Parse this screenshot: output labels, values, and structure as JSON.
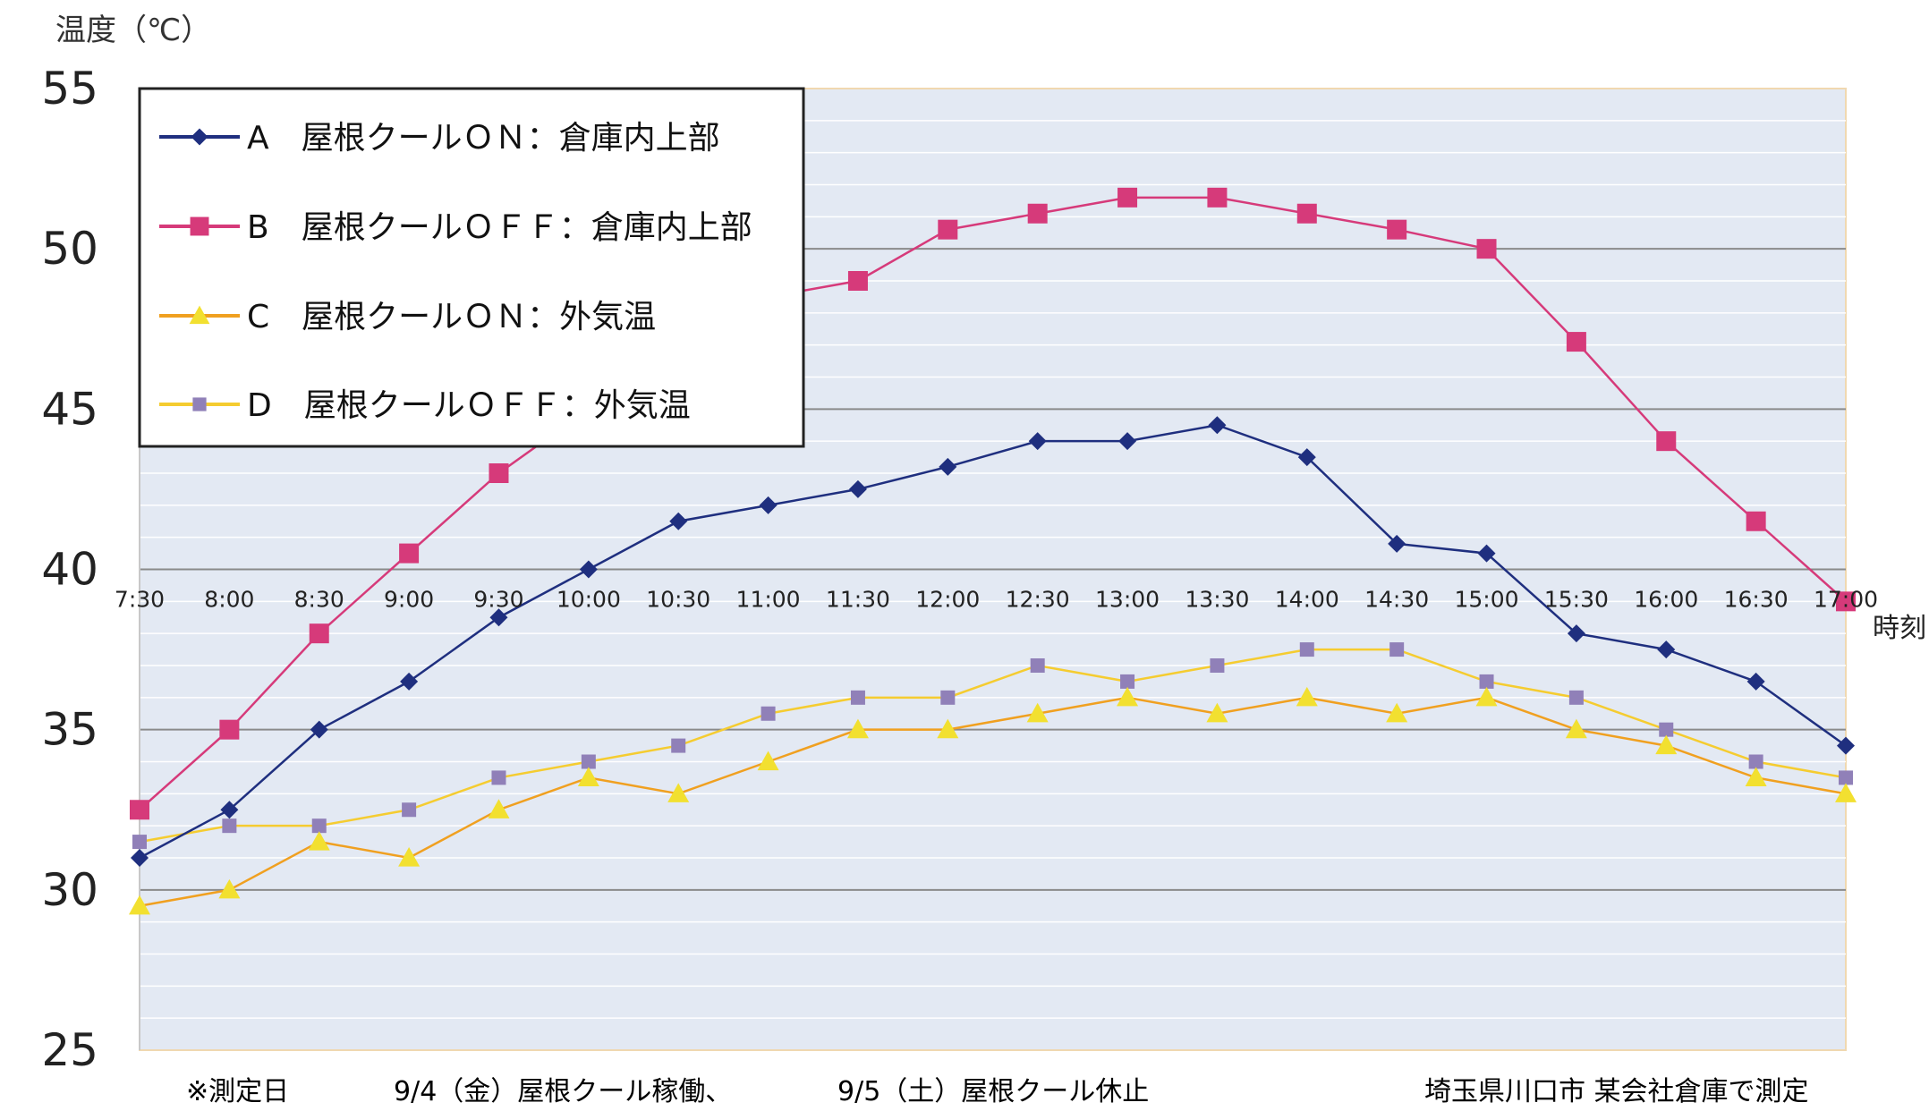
{
  "chart_data": {
    "type": "line",
    "ylabel": "温度（℃）",
    "xlabel": "時刻",
    "ylim": [
      25,
      55
    ],
    "yticks": [
      25,
      30,
      35,
      40,
      45,
      50,
      55
    ],
    "x": [
      "7:30",
      "8:00",
      "8:30",
      "9:00",
      "9:30",
      "10:00",
      "10:30",
      "11:00",
      "11:30",
      "12:00",
      "12:30",
      "13:00",
      "13:30",
      "14:00",
      "14:30",
      "15:00",
      "15:30",
      "16:00",
      "16:30",
      "17:00"
    ],
    "legend_position": "top-left",
    "grid": true,
    "series": [
      {
        "name": "A　屋根クールＯＮ：倉庫内上部",
        "color": "#1f2f7f",
        "marker": "diamond",
        "values": [
          31.0,
          32.5,
          35.0,
          36.5,
          38.5,
          40.0,
          41.5,
          42.0,
          42.5,
          43.2,
          44.0,
          44.0,
          44.5,
          43.5,
          40.8,
          40.5,
          38.0,
          37.5,
          36.5,
          34.5
        ]
      },
      {
        "name": "B　屋根クールＯＦＦ：倉庫内上部",
        "color": "#d63a7a",
        "marker": "square",
        "values": [
          32.5,
          35.0,
          38.0,
          40.5,
          43.0,
          45.0,
          47.0,
          48.5,
          49.0,
          50.6,
          51.1,
          51.6,
          51.6,
          51.1,
          50.6,
          50.0,
          47.1,
          44.0,
          41.5,
          39.0
        ]
      },
      {
        "name": "C　屋根クールＯＮ：外気温",
        "color": "#f0a020",
        "marker": "triangle",
        "marker_color": "#f2e030",
        "values": [
          29.5,
          30.0,
          31.5,
          31.0,
          32.5,
          33.5,
          33.0,
          34.0,
          35.0,
          35.0,
          35.5,
          36.0,
          35.5,
          36.0,
          35.5,
          36.0,
          35.0,
          34.5,
          33.5,
          33.0
        ]
      },
      {
        "name": "D　屋根クールＯＦＦ：外気温",
        "color": "#f5cc30",
        "marker": "square-small",
        "marker_color": "#9080b8",
        "values": [
          31.5,
          32.0,
          32.0,
          32.5,
          33.5,
          34.0,
          34.5,
          35.5,
          36.0,
          36.0,
          37.0,
          36.5,
          37.0,
          37.5,
          37.5,
          36.5,
          36.0,
          35.0,
          34.0,
          33.5
        ]
      }
    ],
    "annotations": {
      "date_label": "※測定日",
      "day1": "9/4（金）屋根クール稼働、",
      "day2": "9/5（土）屋根クール休止",
      "location": "埼玉県川口市 某会社倉庫で測定"
    }
  }
}
